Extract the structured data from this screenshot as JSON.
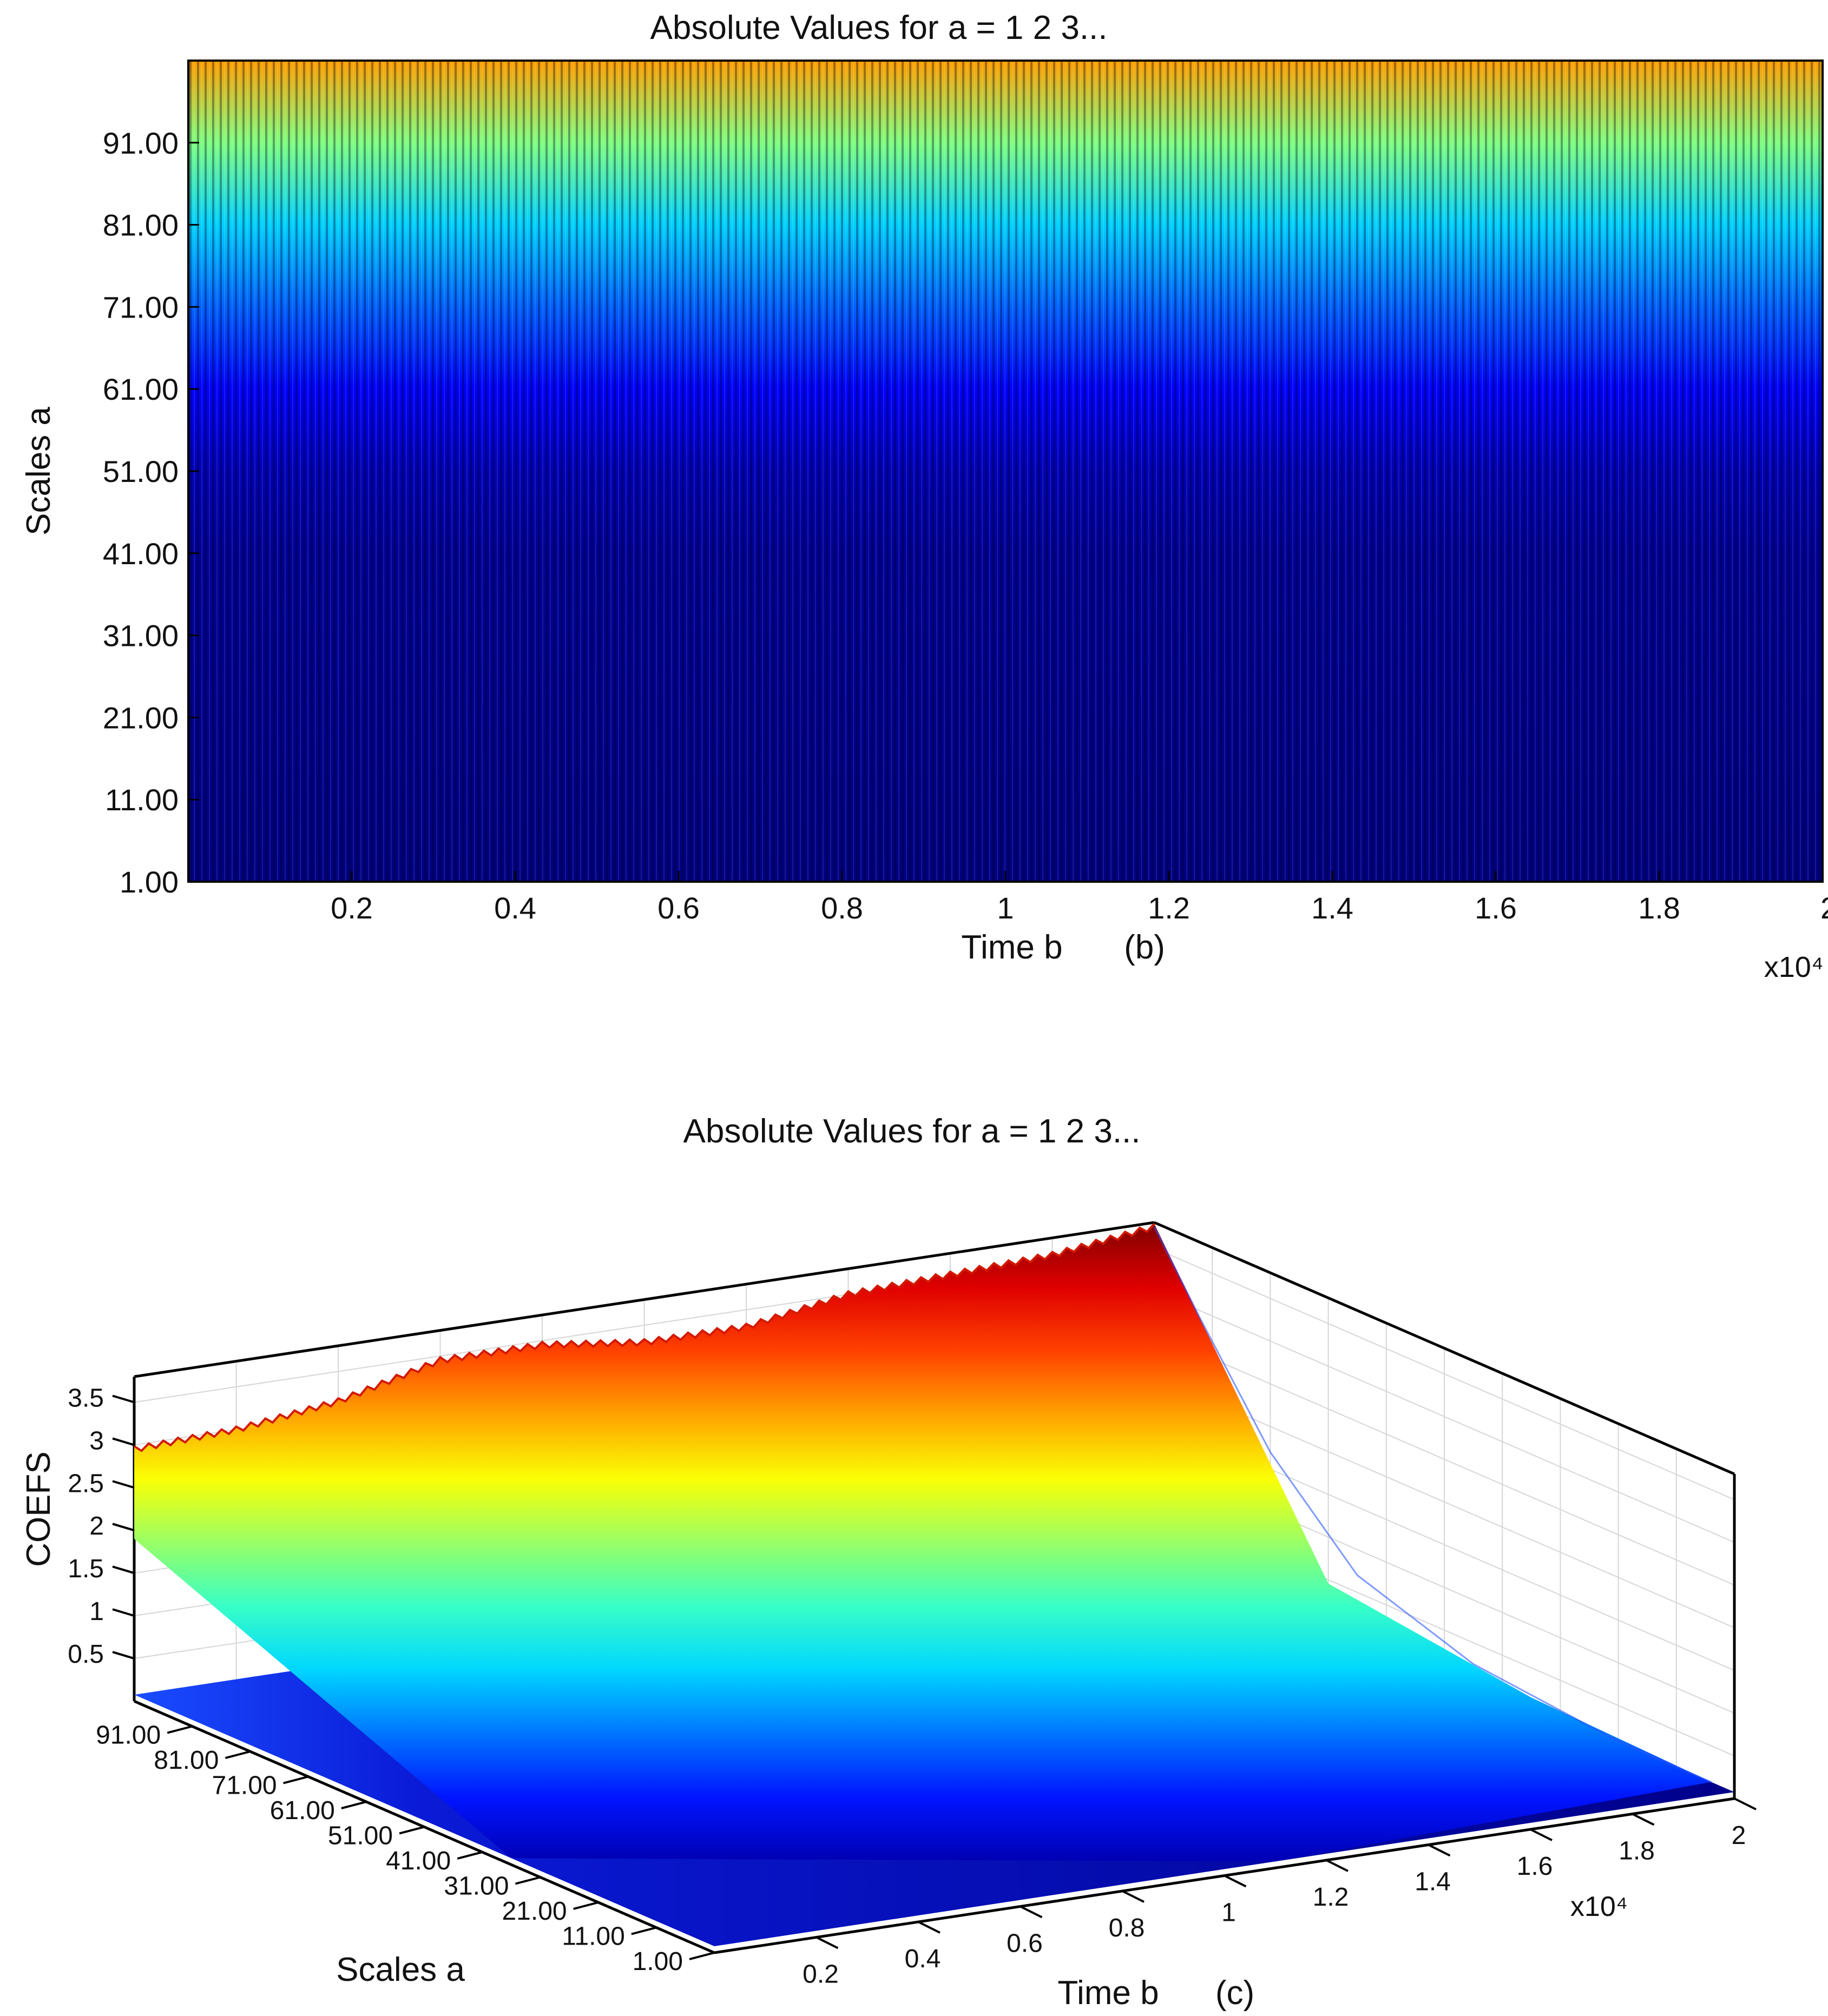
{
  "chart_data": [
    {
      "id": "b",
      "type": "heatmap",
      "title": "Absolute Values for a = 1 2 3...",
      "xlabel": "Time b",
      "panel_label": "(b)",
      "ylabel": "Scales a",
      "x_multiplier": "x10⁴",
      "x_ticks": [
        "0.2",
        "0.4",
        "0.6",
        "0.8",
        "1",
        "1.2",
        "1.4",
        "1.6",
        "1.8",
        "2"
      ],
      "x_tick_values": [
        0.2,
        0.4,
        0.6,
        0.8,
        1.0,
        1.2,
        1.4,
        1.6,
        1.8,
        2.0
      ],
      "y_ticks": [
        "1.00",
        "11.00",
        "21.00",
        "31.00",
        "41.00",
        "51.00",
        "61.00",
        "71.00",
        "81.00",
        "91.00"
      ],
      "y_tick_values": [
        1,
        11,
        21,
        31,
        41,
        51,
        61,
        71,
        81,
        91
      ],
      "xlim": [
        0,
        2.0
      ],
      "ylim": [
        1,
        101
      ],
      "colormap": "jet",
      "colorscale_by_scale": [
        {
          "scale": 1,
          "level": 0.0
        },
        {
          "scale": 41,
          "level": 0.02
        },
        {
          "scale": 51,
          "level": 0.05
        },
        {
          "scale": 61,
          "level": 0.12
        },
        {
          "scale": 71,
          "level": 0.22
        },
        {
          "scale": 81,
          "level": 0.33
        },
        {
          "scale": 91,
          "level": 0.5
        },
        {
          "scale": 101,
          "level": 0.72
        }
      ]
    },
    {
      "id": "c",
      "type": "surface3d",
      "title": "Absolute Values for a = 1 2 3...",
      "xlabel": "Time b",
      "panel_label": "(c)",
      "ylabel": "Scales a",
      "zlabel": "COEFS",
      "x_multiplier": "x10⁴",
      "x_ticks": [
        "0.2",
        "0.4",
        "0.6",
        "0.8",
        "1",
        "1.2",
        "1.4",
        "1.6",
        "1.8",
        "2"
      ],
      "x_tick_values": [
        0.2,
        0.4,
        0.6,
        0.8,
        1.0,
        1.2,
        1.4,
        1.6,
        1.8,
        2.0
      ],
      "y_ticks": [
        "1.00",
        "11.00",
        "21.00",
        "31.00",
        "41.00",
        "51.00",
        "61.00",
        "71.00",
        "81.00",
        "91.00"
      ],
      "y_tick_values": [
        1,
        11,
        21,
        31,
        41,
        51,
        61,
        71,
        81,
        91
      ],
      "z_ticks": [
        "0.5",
        "1",
        "1.5",
        "2",
        "2.5",
        "3",
        "3.5"
      ],
      "z_tick_values": [
        0.5,
        1,
        1.5,
        2,
        2.5,
        3,
        3.5
      ],
      "xlim": [
        0,
        2.0
      ],
      "ylim": [
        1,
        101
      ],
      "zlim": [
        0,
        3.8
      ],
      "colormap": "jet",
      "ridge_max_coefs": [
        {
          "time_b": 0.0,
          "coefs": 2.95
        },
        {
          "time_b": 0.2,
          "coefs": 3.0
        },
        {
          "time_b": 0.4,
          "coefs": 3.15
        },
        {
          "time_b": 0.6,
          "coefs": 3.45
        },
        {
          "time_b": 0.8,
          "coefs": 3.45
        },
        {
          "time_b": 1.0,
          "coefs": 3.3
        },
        {
          "time_b": 1.2,
          "coefs": 3.3
        },
        {
          "time_b": 1.4,
          "coefs": 3.5
        },
        {
          "time_b": 1.6,
          "coefs": 3.55
        },
        {
          "time_b": 1.8,
          "coefs": 3.6
        },
        {
          "time_b": 2.0,
          "coefs": 3.75
        }
      ]
    }
  ]
}
